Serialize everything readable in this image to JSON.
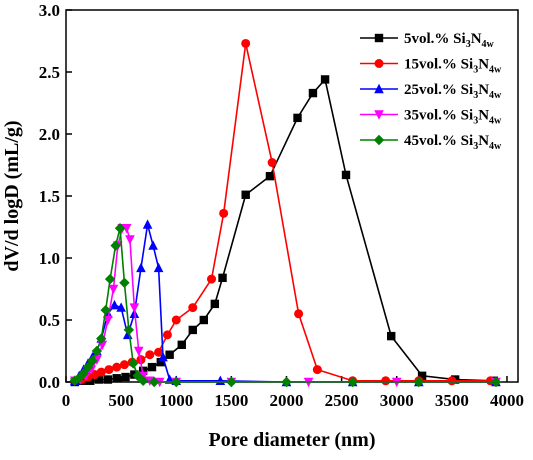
{
  "chart_data": {
    "type": "line",
    "title": "",
    "xlabel": "Pore diameter (nm)",
    "ylabel": "dV/d logD (mL/g)",
    "xlim": [
      0,
      4100
    ],
    "ylim": [
      0,
      3.0
    ],
    "xticks": [
      0,
      500,
      1000,
      1500,
      2000,
      2500,
      3000,
      3500,
      4000
    ],
    "yticks": [
      0.0,
      0.5,
      1.0,
      1.5,
      2.0,
      2.5,
      3.0
    ],
    "xtick_labels": [
      "0",
      "500",
      "1000",
      "1500",
      "2000",
      "2500",
      "3000",
      "3500",
      "4000"
    ],
    "ytick_labels": [
      "0.0",
      "0.5",
      "1.0",
      "1.5",
      "2.0",
      "2.5",
      "3.0"
    ],
    "grid": false,
    "legend_position": "top-right",
    "series": [
      {
        "name": "5vol.% Si3N4w",
        "legend": {
          "prefix": "5vol.% Si",
          "sub1": "3",
          "mid": "N",
          "sub2": "4w"
        },
        "color": "#000000",
        "marker": "square",
        "x": [
          80,
          150,
          220,
          300,
          380,
          460,
          540,
          620,
          700,
          780,
          860,
          940,
          1050,
          1150,
          1250,
          1350,
          1420,
          1630,
          1850,
          2100,
          2240,
          2350,
          2540,
          2950,
          3230,
          3530,
          3880
        ],
        "y": [
          0.0,
          0.01,
          0.01,
          0.02,
          0.02,
          0.03,
          0.04,
          0.06,
          0.09,
          0.12,
          0.16,
          0.22,
          0.3,
          0.42,
          0.5,
          0.63,
          0.84,
          1.51,
          1.66,
          2.13,
          2.33,
          2.44,
          1.67,
          0.37,
          0.05,
          0.02,
          0.01
        ]
      },
      {
        "name": "15vol.% Si3N4w",
        "legend": {
          "prefix": "15vol.% Si",
          "sub1": "3",
          "mid": "N",
          "sub2": "4w"
        },
        "color": "#ff0000",
        "marker": "circle",
        "x": [
          80,
          140,
          200,
          260,
          320,
          390,
          460,
          530,
          600,
          680,
          760,
          840,
          920,
          1000,
          1150,
          1320,
          1430,
          1630,
          1870,
          2110,
          2280,
          2600,
          2900,
          3200,
          3500,
          3850
        ],
        "y": [
          0.01,
          0.02,
          0.04,
          0.06,
          0.08,
          0.1,
          0.12,
          0.14,
          0.16,
          0.18,
          0.22,
          0.24,
          0.38,
          0.5,
          0.6,
          0.83,
          1.36,
          2.73,
          1.77,
          0.55,
          0.1,
          0.01,
          0.01,
          0.01,
          0.01,
          0.01
        ]
      },
      {
        "name": "25vol.% Si3N4w",
        "legend": {
          "prefix": "25vol.% Si",
          "sub1": "3",
          "mid": "N",
          "sub2": "4w"
        },
        "color": "#0000ff",
        "marker": "triangle-up",
        "x": [
          80,
          120,
          160,
          200,
          240,
          280,
          320,
          380,
          440,
          500,
          560,
          620,
          680,
          740,
          790,
          840,
          880,
          940,
          1000,
          1400,
          2000,
          2600,
          3200,
          3900
        ],
        "y": [
          0.01,
          0.05,
          0.1,
          0.15,
          0.2,
          0.25,
          0.35,
          0.55,
          0.62,
          0.6,
          0.38,
          0.55,
          0.92,
          1.27,
          1.1,
          0.92,
          0.2,
          0.02,
          0.01,
          0.01,
          0.0,
          0.0,
          0.0,
          0.0
        ]
      },
      {
        "name": "35vol.% Si3N4w",
        "legend": {
          "prefix": "35vol.% Si",
          "sub1": "3",
          "mid": "N",
          "sub2": "4w"
        },
        "color": "#ff00ff",
        "marker": "triangle-down",
        "x": [
          80,
          130,
          180,
          230,
          280,
          330,
          380,
          430,
          470,
          510,
          550,
          580,
          620,
          660,
          700,
          760,
          850,
          1000,
          1500,
          2200,
          3000,
          3900
        ],
        "y": [
          0.01,
          0.02,
          0.05,
          0.1,
          0.18,
          0.3,
          0.5,
          0.75,
          1.1,
          1.24,
          1.24,
          1.15,
          0.6,
          0.25,
          0.05,
          0.01,
          0.0,
          0.0,
          0.0,
          0.0,
          0.0,
          0.0
        ]
      },
      {
        "name": "45vol.% Si3N4w",
        "legend": {
          "prefix": "45vol.% Si",
          "sub1": "3",
          "mid": "N",
          "sub2": "4w"
        },
        "color": "#008000",
        "marker": "diamond",
        "x": [
          80,
          120,
          160,
          200,
          240,
          280,
          320,
          360,
          400,
          450,
          490,
          530,
          570,
          610,
          650,
          700,
          800,
          1000,
          1500,
          2000,
          2600,
          3200,
          3900
        ],
        "y": [
          0.01,
          0.03,
          0.07,
          0.12,
          0.17,
          0.25,
          0.35,
          0.58,
          0.83,
          1.1,
          1.24,
          0.8,
          0.42,
          0.15,
          0.05,
          0.01,
          0.0,
          0.0,
          0.0,
          0.0,
          0.0,
          0.0,
          0.0
        ]
      }
    ]
  }
}
